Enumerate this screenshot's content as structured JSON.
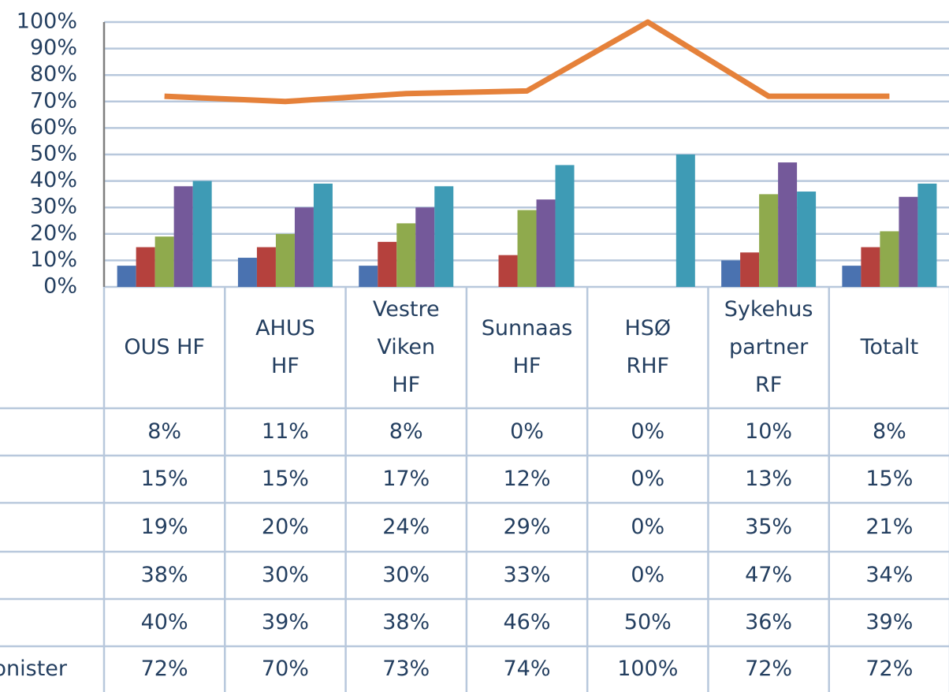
{
  "chart_data": {
    "type": "bar",
    "categories": [
      "OUS HF",
      "AHUS\nHF",
      "Vestre\nViken\nHF",
      "Sunnaas\nHF",
      "HSØ\nRHF",
      "Sykehus\npartner\nRF",
      "Totalt"
    ],
    "ylim": [
      0,
      100
    ],
    "yticks": [
      {
        "value": 0,
        "label": "0%"
      },
      {
        "value": 10,
        "label": "10%"
      },
      {
        "value": 20,
        "label": "20%"
      },
      {
        "value": 30,
        "label": "30%"
      },
      {
        "value": 40,
        "label": "40%"
      },
      {
        "value": 50,
        "label": "50%"
      },
      {
        "value": 60,
        "label": "60%"
      },
      {
        "value": 70,
        "label": "70%"
      },
      {
        "value": 80,
        "label": "80%"
      },
      {
        "value": 90,
        "label": "90%"
      },
      {
        "value": 100,
        "label": "100%"
      }
    ],
    "grid": true,
    "series": [
      {
        "color": "#4a72b0",
        "values": [
          8,
          11,
          8,
          0,
          0,
          10,
          8
        ],
        "value_labels": [
          "8%",
          "11%",
          "8%",
          "0%",
          "0%",
          "10%",
          "8%"
        ]
      },
      {
        "color": "#b5413d",
        "values": [
          15,
          15,
          17,
          12,
          0,
          13,
          15
        ],
        "value_labels": [
          "15%",
          "15%",
          "17%",
          "12%",
          "0%",
          "13%",
          "15%"
        ]
      },
      {
        "color": "#8faa4d",
        "values": [
          19,
          20,
          24,
          29,
          0,
          35,
          21
        ],
        "value_labels": [
          "19%",
          "20%",
          "24%",
          "29%",
          "0%",
          "35%",
          "21%"
        ]
      },
      {
        "color": "#74599a",
        "values": [
          38,
          30,
          30,
          33,
          0,
          47,
          34
        ],
        "value_labels": [
          "38%",
          "30%",
          "30%",
          "33%",
          "0%",
          "47%",
          "34%"
        ]
      },
      {
        "color": "#3e9bb5",
        "values": [
          40,
          39,
          38,
          46,
          50,
          36,
          39
        ],
        "value_labels": [
          "40%",
          "39%",
          "38%",
          "46%",
          "50%",
          "36%",
          "39%"
        ]
      },
      {
        "name": "jonister",
        "type": "line",
        "color": "#e5813a",
        "values": [
          72,
          70,
          73,
          74,
          100,
          72,
          72
        ],
        "value_labels": [
          "72%",
          "70%",
          "73%",
          "74%",
          "100%",
          "72%",
          "72%"
        ]
      }
    ]
  }
}
